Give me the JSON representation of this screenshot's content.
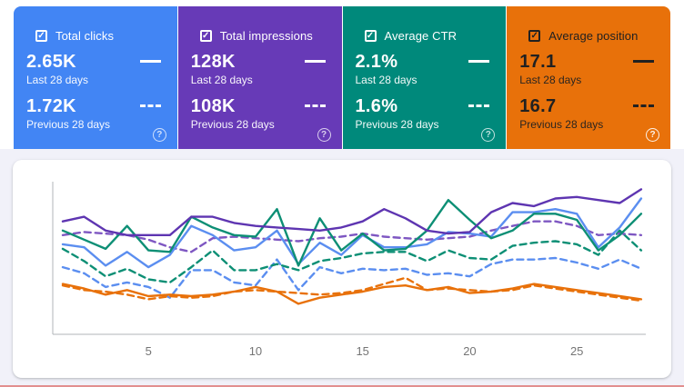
{
  "icons": {
    "checkbox_check": "✓",
    "help": "?"
  },
  "cards": [
    {
      "title": "Total clicks",
      "current_value": "2.65K",
      "current_label": "Last 28 days",
      "previous_value": "1.72K",
      "previous_label": "Previous 28 days",
      "color": "#4285f4",
      "text_color": "#ffffff",
      "checked": true
    },
    {
      "title": "Total impressions",
      "current_value": "128K",
      "current_label": "Last 28 days",
      "previous_value": "108K",
      "previous_label": "Previous 28 days",
      "color": "#673ab7",
      "text_color": "#ffffff",
      "checked": true
    },
    {
      "title": "Average CTR",
      "current_value": "2.1%",
      "current_label": "Last 28 days",
      "previous_value": "1.6%",
      "previous_label": "Previous 28 days",
      "color": "#00897b",
      "text_color": "#ffffff",
      "checked": true
    },
    {
      "title": "Average position",
      "current_value": "17.1",
      "current_label": "Last 28 days",
      "previous_value": "16.7",
      "previous_label": "Previous 28 days",
      "color": "#e8710a",
      "text_color": "#212121",
      "checked": true
    }
  ],
  "chart_data": {
    "type": "line",
    "x_label": "",
    "y_label": "",
    "x": [
      1,
      2,
      3,
      4,
      5,
      6,
      7,
      8,
      9,
      10,
      11,
      12,
      13,
      14,
      15,
      16,
      17,
      18,
      19,
      20,
      21,
      22,
      23,
      24,
      25,
      26,
      27,
      28
    ],
    "x_ticks": [
      5,
      10,
      15,
      20,
      25
    ],
    "y_axis_labels": "hidden (each metric plotted on its own hidden scale)",
    "y_scale_note": "values are percent of plot height, 0 = x-axis, 100 = plot top",
    "grid": false,
    "legend_position": "in metric cards above (solid = last 28 days, dashed = previous 28 days)",
    "series": [
      {
        "key": "clicks-previous",
        "name": "Total clicks — Previous 28 days",
        "color": "#5b8ef0",
        "dashed": true,
        "values": [
          44,
          40,
          31,
          34,
          31,
          24,
          42,
          42,
          34,
          32,
          49,
          29,
          44,
          40,
          43,
          42,
          43,
          39,
          40,
          38,
          46,
          49,
          49,
          50,
          47,
          43,
          49,
          43
        ]
      },
      {
        "key": "ctr-previous",
        "name": "Average CTR — Previous 28 days",
        "color": "#0d8f75",
        "dashed": true,
        "values": [
          56,
          48,
          38,
          43,
          36,
          34,
          44,
          55,
          42,
          42,
          46,
          42,
          48,
          50,
          53,
          54,
          54,
          48,
          55,
          50,
          49,
          58,
          60,
          61,
          59,
          52,
          68,
          55
        ]
      },
      {
        "key": "impressions-previous",
        "name": "Total impressions — Previous 28 days",
        "color": "#7e57c2",
        "dashed": true,
        "values": [
          65,
          67,
          66,
          65,
          62,
          57,
          54,
          63,
          64,
          63,
          62,
          61,
          63,
          64,
          66,
          64,
          63,
          62,
          63,
          64,
          68,
          71,
          74,
          74,
          71,
          65,
          66,
          65
        ]
      },
      {
        "key": "position-previous",
        "name": "Average position — Previous 28 days",
        "color": "#e8710a",
        "dashed": true,
        "values": [
          32,
          29,
          28,
          26,
          23,
          25,
          24,
          25,
          28,
          29,
          28,
          27,
          26,
          27,
          29,
          33,
          37,
          29,
          30,
          29,
          28,
          29,
          32,
          30,
          28,
          26,
          24,
          22
        ]
      },
      {
        "key": "position-current",
        "name": "Average position — Last 28 days",
        "color": "#e8710a",
        "dashed": false,
        "values": [
          33,
          30,
          26,
          29,
          25,
          26,
          25,
          26,
          28,
          31,
          28,
          20,
          24,
          26,
          28,
          31,
          32,
          29,
          31,
          27,
          28,
          30,
          33,
          31,
          29,
          27,
          25,
          23
        ]
      },
      {
        "key": "clicks-current",
        "name": "Total clicks — Last 28 days",
        "color": "#5b8ef0",
        "dashed": false,
        "values": [
          59,
          57,
          45,
          54,
          44,
          52,
          71,
          65,
          55,
          57,
          68,
          46,
          60,
          52,
          65,
          57,
          57,
          59,
          67,
          66,
          64,
          80,
          80,
          82,
          79,
          57,
          70,
          89
        ]
      },
      {
        "key": "ctr-current",
        "name": "Average CTR — Last 28 days",
        "color": "#0d8f75",
        "dashed": false,
        "values": [
          68,
          62,
          56,
          71,
          55,
          54,
          77,
          70,
          65,
          64,
          82,
          45,
          76,
          55,
          66,
          55,
          56,
          68,
          88,
          75,
          63,
          68,
          79,
          79,
          75,
          55,
          65,
          79
        ]
      },
      {
        "key": "impressions-current",
        "name": "Total impressions — Last 28 days",
        "color": "#5e35b1",
        "dashed": false,
        "values": [
          74,
          77,
          68,
          65,
          65,
          65,
          77,
          77,
          73,
          71,
          70,
          69,
          68,
          70,
          74,
          82,
          76,
          68,
          66,
          67,
          80,
          86,
          84,
          89,
          90,
          88,
          86,
          95
        ]
      }
    ]
  }
}
